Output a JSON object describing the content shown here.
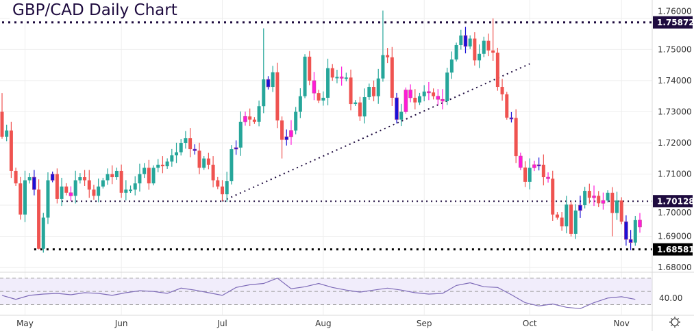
{
  "title": "GBP/CAD Daily Chart",
  "chart_data": {
    "type": "candlestick",
    "title": "GBP/CAD Daily Chart",
    "ylim": [
      1.6787,
      1.7659
    ],
    "yticks": [
      "1.68000",
      "1.69000",
      "1.70000",
      "1.71000",
      "1.72000",
      "1.73000",
      "1.74000",
      "1.75000",
      "1.76000"
    ],
    "ytick_values": [
      1.68,
      1.69,
      1.7,
      1.71,
      1.72,
      1.73,
      1.74,
      1.75,
      1.76
    ],
    "months": [
      {
        "label": "May",
        "index": 5
      },
      {
        "label": "Jun",
        "index": 26
      },
      {
        "label": "Jul",
        "index": 48
      },
      {
        "label": "Aug",
        "index": 70
      },
      {
        "label": "Sep",
        "index": 92
      },
      {
        "label": "Oct",
        "index": 115
      },
      {
        "label": "Nov",
        "index": 135
      }
    ],
    "first_open": 1.73,
    "closes": [
      1.722,
      1.724,
      1.711,
      1.707,
      1.697,
      1.708,
      1.709,
      1.705,
      1.686,
      1.696,
      1.708,
      1.71,
      1.702,
      1.706,
      1.704,
      1.703,
      1.708,
      1.709,
      1.708,
      1.705,
      1.703,
      1.706,
      1.708,
      1.71,
      1.709,
      1.711,
      1.704,
      1.705,
      1.705,
      1.707,
      1.71,
      1.712,
      1.707,
      1.712,
      1.713,
      1.7125,
      1.714,
      1.716,
      1.717,
      1.72,
      1.7215,
      1.718,
      1.7175,
      1.712,
      1.715,
      1.713,
      1.708,
      1.706,
      1.7035,
      1.7077,
      1.718,
      1.7185,
      1.7268,
      1.7285,
      1.7275,
      1.7268,
      1.7318,
      1.7404,
      1.738,
      1.7427,
      1.7272,
      1.721,
      1.722,
      1.724,
      1.73,
      1.735,
      1.7477,
      1.74,
      1.736,
      1.7336,
      1.7345,
      1.744,
      1.741,
      1.7412,
      1.741,
      1.741,
      1.7325,
      1.733,
      1.7285,
      1.7347,
      1.738,
      1.735,
      1.7407,
      1.7482,
      1.7475,
      1.7345,
      1.7275,
      1.73,
      1.737,
      1.7345,
      1.733,
      1.735,
      1.7365,
      1.7362,
      1.735,
      1.734,
      1.7334,
      1.7426,
      1.7468,
      1.7514,
      1.7545,
      1.751,
      1.7535,
      1.7465,
      1.7486,
      1.7528,
      1.7497,
      1.749,
      1.738,
      1.7356,
      1.7281,
      1.728,
      1.7158,
      1.7121,
      1.7075,
      1.712,
      1.713,
      1.713,
      1.709,
      1.7085,
      1.697,
      1.696,
      1.6932,
      1.7002,
      1.6908,
      1.6983,
      1.7,
      1.7046,
      1.7024,
      1.703,
      1.7006,
      1.7015,
      1.704,
      1.6975,
      1.7015,
      1.6947,
      1.689,
      1.688,
      1.6952,
      1.693
    ],
    "wick_extremes": [
      {
        "index": 0,
        "high": 1.736
      },
      {
        "index": 8,
        "low": 1.6858
      },
      {
        "index": 48,
        "low": 1.7013
      },
      {
        "index": 57,
        "high": 1.7568
      },
      {
        "index": 61,
        "low": 1.715
      },
      {
        "index": 83,
        "high": 1.7625
      },
      {
        "index": 107,
        "high": 1.76
      },
      {
        "index": 136,
        "low": 1.687
      },
      {
        "index": 133,
        "low": 1.69
      }
    ],
    "highlight_blue": [
      7,
      11,
      42,
      51,
      58,
      62,
      86,
      101,
      111,
      117,
      126,
      136,
      137
    ],
    "highlight_magenta": [
      15,
      53,
      63,
      68,
      74,
      88,
      89,
      93,
      95,
      96,
      113,
      116,
      119,
      129,
      131,
      139
    ],
    "levels": [
      {
        "label": "1.75872",
        "value": 1.75872,
        "start_index": 0,
        "color": "#1e0b3f"
      },
      {
        "label": "1.70128",
        "value": 1.70128,
        "start_index": 13,
        "color": "#1e0b3f"
      },
      {
        "label": "1.68581",
        "value": 1.68581,
        "start_index": 7,
        "color": "#000000"
      }
    ],
    "trendline": {
      "start_index": 48,
      "start_value": 1.7013,
      "end_index": 115,
      "end_value": 1.7454
    },
    "rsi": {
      "label": "40.00",
      "label_value": 40,
      "ylim": [
        15,
        78
      ],
      "bands": [
        70,
        50,
        30
      ],
      "step": 3,
      "values": [
        44,
        38,
        44,
        46,
        47,
        45,
        48,
        47,
        44,
        48,
        51,
        50,
        47,
        55,
        52,
        48,
        44,
        56,
        60,
        62,
        70,
        54,
        57,
        62,
        56,
        52,
        49,
        52,
        55,
        52,
        48,
        46,
        47,
        59,
        63,
        57,
        56,
        45,
        33,
        28,
        31,
        26,
        24,
        33,
        40,
        42,
        38
      ]
    },
    "colors": {
      "up": "#26a69a",
      "down": "#ef5350",
      "blue": "#1a10d8",
      "magenta": "#ff1ad9",
      "rsi": "#7e6bb8",
      "level": "#1e0b3f"
    }
  }
}
